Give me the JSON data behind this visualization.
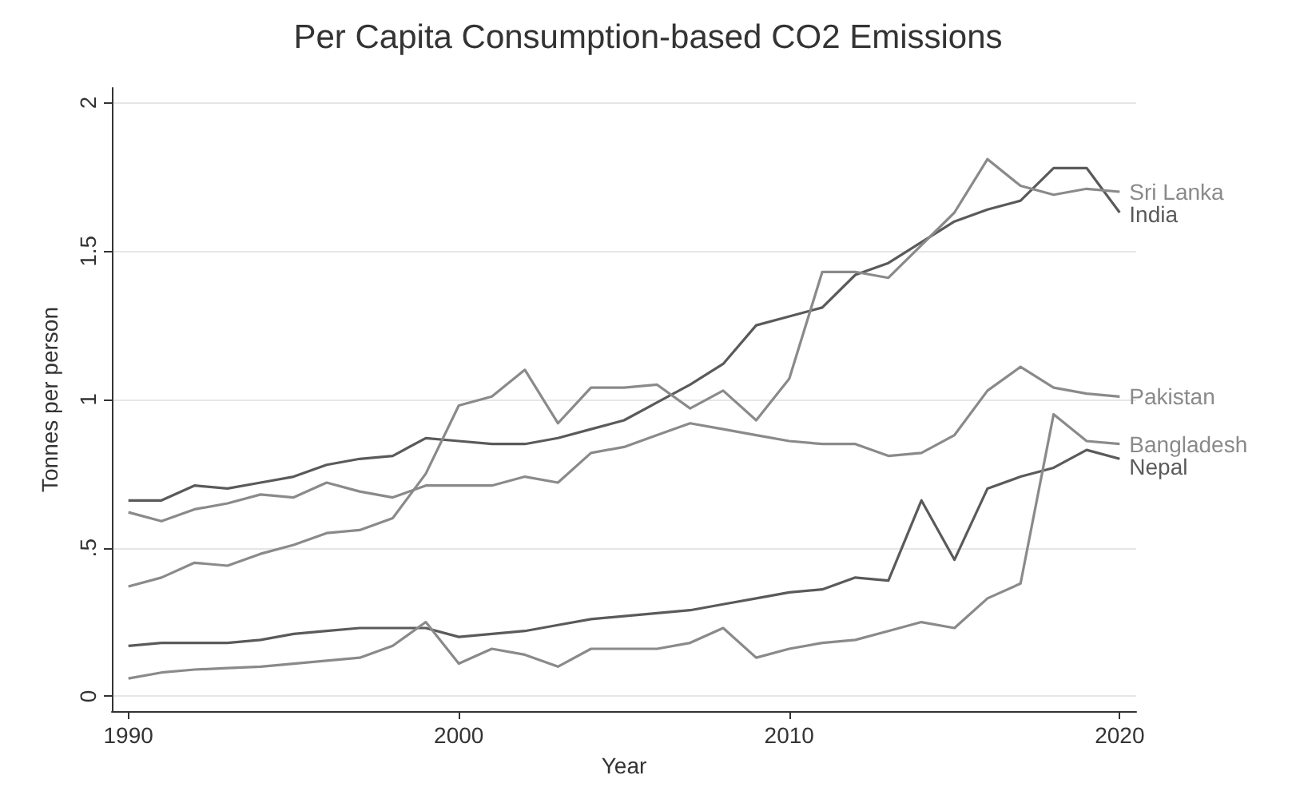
{
  "chart_data": {
    "type": "line",
    "title": "Per Capita Consumption-based CO2 Emissions",
    "xlabel": "Year",
    "ylabel": "Tonnes per person",
    "x": [
      1990,
      1991,
      1992,
      1993,
      1994,
      1995,
      1996,
      1997,
      1998,
      1999,
      2000,
      2001,
      2002,
      2003,
      2004,
      2005,
      2006,
      2007,
      2008,
      2009,
      2010,
      2011,
      2012,
      2013,
      2014,
      2015,
      2016,
      2017,
      2018,
      2019,
      2020
    ],
    "series": [
      {
        "name": "India",
        "color": "#5a5a5a",
        "values": [
          0.66,
          0.66,
          0.71,
          0.7,
          0.72,
          0.74,
          0.78,
          0.8,
          0.81,
          0.87,
          0.86,
          0.85,
          0.85,
          0.87,
          0.9,
          0.93,
          0.99,
          1.05,
          1.12,
          1.25,
          1.28,
          1.31,
          1.42,
          1.46,
          1.53,
          1.6,
          1.64,
          1.67,
          1.78,
          1.78,
          1.63
        ]
      },
      {
        "name": "Sri Lanka",
        "color": "#8a8a8a",
        "values": [
          0.37,
          0.4,
          0.45,
          0.44,
          0.48,
          0.51,
          0.55,
          0.56,
          0.6,
          0.75,
          0.98,
          1.01,
          1.1,
          0.92,
          1.04,
          1.04,
          1.05,
          0.97,
          1.03,
          0.93,
          1.07,
          1.43,
          1.43,
          1.41,
          1.52,
          1.63,
          1.81,
          1.72,
          1.69,
          1.71,
          1.7
        ]
      },
      {
        "name": "Pakistan",
        "color": "#8a8a8a",
        "values": [
          0.62,
          0.59,
          0.63,
          0.65,
          0.68,
          0.67,
          0.72,
          0.69,
          0.67,
          0.71,
          0.71,
          0.71,
          0.74,
          0.72,
          0.82,
          0.84,
          0.88,
          0.92,
          0.9,
          0.88,
          0.86,
          0.85,
          0.85,
          0.81,
          0.82,
          0.88,
          1.03,
          1.11,
          1.04,
          1.02,
          1.01
        ]
      },
      {
        "name": "Nepal",
        "color": "#5a5a5a",
        "values": [
          0.17,
          0.18,
          0.18,
          0.18,
          0.19,
          0.21,
          0.22,
          0.23,
          0.23,
          0.23,
          0.2,
          0.21,
          0.22,
          0.24,
          0.26,
          0.27,
          0.28,
          0.29,
          0.31,
          0.33,
          0.35,
          0.36,
          0.4,
          0.39,
          0.66,
          0.46,
          0.7,
          0.74,
          0.77,
          0.83,
          0.8
        ]
      },
      {
        "name": "Bangladesh",
        "color": "#8a8a8a",
        "values": [
          0.06,
          0.08,
          0.09,
          0.095,
          0.1,
          0.11,
          0.12,
          0.13,
          0.17,
          0.25,
          0.11,
          0.16,
          0.14,
          0.1,
          0.16,
          0.16,
          0.16,
          0.18,
          0.23,
          0.13,
          0.16,
          0.18,
          0.19,
          0.22,
          0.25,
          0.23,
          0.33,
          0.38,
          0.95,
          0.86,
          0.85
        ]
      }
    ],
    "xlim": [
      1989.5,
      2020.5
    ],
    "ylim": [
      -0.05,
      2.05
    ],
    "xticks": [
      1990,
      2000,
      2010,
      2020
    ],
    "yticks": [
      0,
      {
        "value": 0.5,
        "label": ".5"
      },
      1,
      1.5,
      2
    ],
    "grid": "y",
    "legend": false,
    "marker": "none",
    "line_style": "solid"
  }
}
